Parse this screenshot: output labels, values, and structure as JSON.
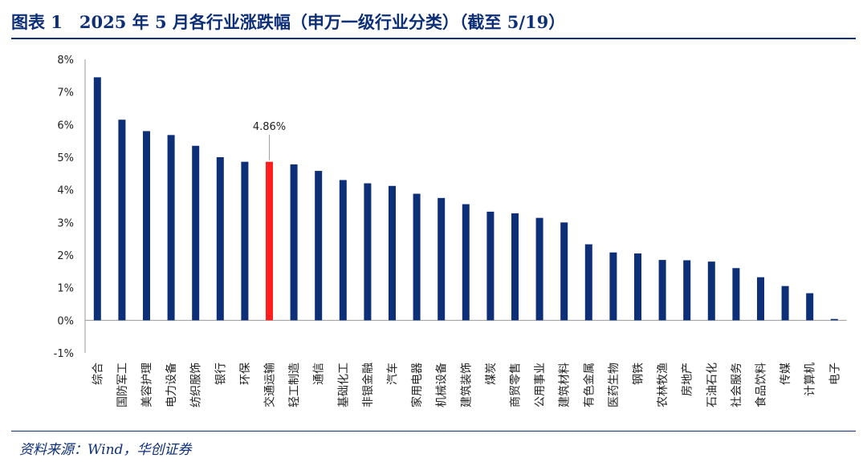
{
  "header": {
    "title": "图表 1　2025 年 5 月各行业涨跌幅（申万一级行业分类）（截至 5/19）"
  },
  "footer": {
    "source": "资料来源：Wind，华创证券"
  },
  "colors": {
    "bar": "#0d2f77",
    "highlight": "#ff1f1f",
    "axis": "#999999",
    "text": "#222222"
  },
  "chart_data": {
    "type": "bar",
    "title": "",
    "xlabel": "",
    "ylabel": "",
    "ylim": [
      -1,
      8
    ],
    "yticks": [
      "8%",
      "7%",
      "6%",
      "5%",
      "4%",
      "3%",
      "2%",
      "1%",
      "0%",
      "-1%"
    ],
    "ytick_values": [
      8,
      7,
      6,
      5,
      4,
      3,
      2,
      1,
      0,
      -1
    ],
    "grid": false,
    "legend": "none",
    "highlight_category": "交通运输",
    "annotation": "4.86%",
    "categories": [
      "综合",
      "国防军工",
      "美容护理",
      "电力设备",
      "纺织服饰",
      "银行",
      "环保",
      "交通运输",
      "轻工制造",
      "通信",
      "基础化工",
      "非银金融",
      "汽车",
      "家用电器",
      "机械设备",
      "建筑装饰",
      "煤炭",
      "商贸零售",
      "公用事业",
      "建筑材料",
      "有色金属",
      "医药生物",
      "钢铁",
      "农林牧渔",
      "房地产",
      "石油石化",
      "社会服务",
      "食品饮料",
      "传媒",
      "计算机",
      "电子"
    ],
    "values": [
      7.45,
      6.15,
      5.8,
      5.68,
      5.35,
      5.0,
      4.86,
      4.86,
      4.78,
      4.58,
      4.3,
      4.2,
      4.12,
      3.88,
      3.75,
      3.56,
      3.33,
      3.28,
      3.14,
      3.0,
      2.33,
      2.08,
      2.05,
      1.85,
      1.84,
      1.8,
      1.6,
      1.32,
      1.05,
      0.83,
      0.04
    ]
  }
}
